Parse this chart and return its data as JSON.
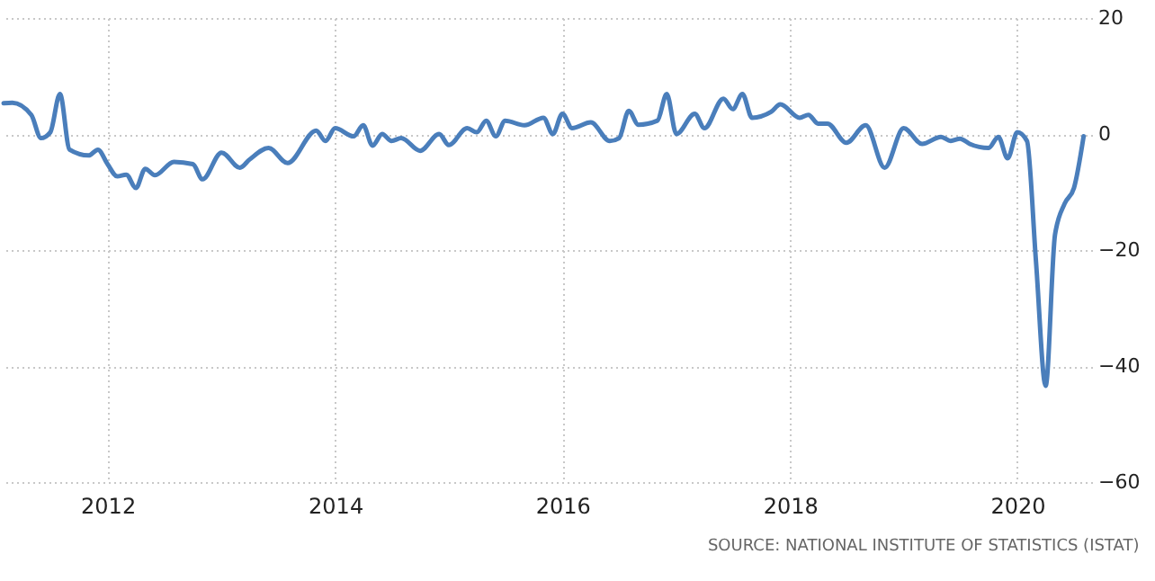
{
  "chart_data": {
    "type": "line",
    "x": [
      "2011-02",
      "2011-03",
      "2011-05",
      "2011-06",
      "2011-07",
      "2011-08",
      "2011-09",
      "2011-11",
      "2011-12",
      "2012-01",
      "2012-02",
      "2012-03",
      "2012-04",
      "2012-05",
      "2012-06",
      "2012-08",
      "2012-10",
      "2012-11",
      "2013-01",
      "2013-03",
      "2013-04",
      "2013-06",
      "2013-08",
      "2013-11",
      "2013-12",
      "2014-01",
      "2014-03",
      "2014-04",
      "2014-05",
      "2014-06",
      "2014-07",
      "2014-08",
      "2014-10",
      "2014-12",
      "2015-01",
      "2015-03",
      "2015-04",
      "2015-05",
      "2015-06",
      "2015-07",
      "2015-09",
      "2015-11",
      "2015-12",
      "2016-01",
      "2016-02",
      "2016-04",
      "2016-06",
      "2016-07",
      "2016-08",
      "2016-09",
      "2016-11",
      "2016-12",
      "2017-01",
      "2017-03",
      "2017-04",
      "2017-06",
      "2017-07",
      "2017-08",
      "2017-09",
      "2017-11",
      "2017-12",
      "2018-02",
      "2018-03",
      "2018-04",
      "2018-05",
      "2018-07",
      "2018-09",
      "2018-11",
      "2019-01",
      "2019-03",
      "2019-05",
      "2019-06",
      "2019-07",
      "2019-08",
      "2019-10",
      "2019-11",
      "2019-12",
      "2020-01",
      "2020-02",
      "2020-03",
      "2020-04",
      "2020-05",
      "2020-06",
      "2020-07",
      "2020-08"
    ],
    "series": [
      {
        "color": "#4a7ebb",
        "values": [
          5.3,
          5.4,
          3.3,
          -0.7,
          0.3,
          6.9,
          -2.7,
          -3.7,
          -2.7,
          -5.2,
          -7.3,
          -7.0,
          -9.3,
          -6.0,
          -7.1,
          -4.8,
          -5.2,
          -7.8,
          -3.2,
          -5.8,
          -4.4,
          -2.4,
          -5.0,
          0.6,
          -1.2,
          1.0,
          -0.4,
          1.5,
          -2.0,
          0,
          -1.2,
          -0.7,
          -2.9,
          0,
          -1.9,
          1.0,
          0.3,
          2.3,
          -0.4,
          2.3,
          1.5,
          2.8,
          0,
          3.5,
          1.0,
          2.0,
          -1.2,
          -0.7,
          4.0,
          1.6,
          2.3,
          6.9,
          0,
          3.5,
          1.0,
          6.1,
          4.3,
          6.9,
          2.8,
          3.8,
          5.1,
          2.8,
          3.3,
          1.8,
          1.8,
          -1.5,
          1.5,
          -5.8,
          1.0,
          -1.7,
          -0.5,
          -1.2,
          -0.8,
          -1.7,
          -2.4,
          -0.5,
          -4.2,
          0.3,
          -1.2,
          -22,
          -43.4,
          -17.4,
          -12,
          -9.3,
          -0.4
        ]
      }
    ],
    "xlim": [
      "2011-02-01",
      "2020-08-28"
    ],
    "xticks": [
      "2012",
      "2014",
      "2016",
      "2018",
      "2020"
    ],
    "ylim": [
      -60,
      20
    ],
    "yticks": [
      -60,
      -40,
      -20,
      0,
      20
    ],
    "grid": true,
    "annotations": [
      "SOURCE: NATIONAL INSTITUTE OF STATISTICS (ISTAT)"
    ]
  }
}
